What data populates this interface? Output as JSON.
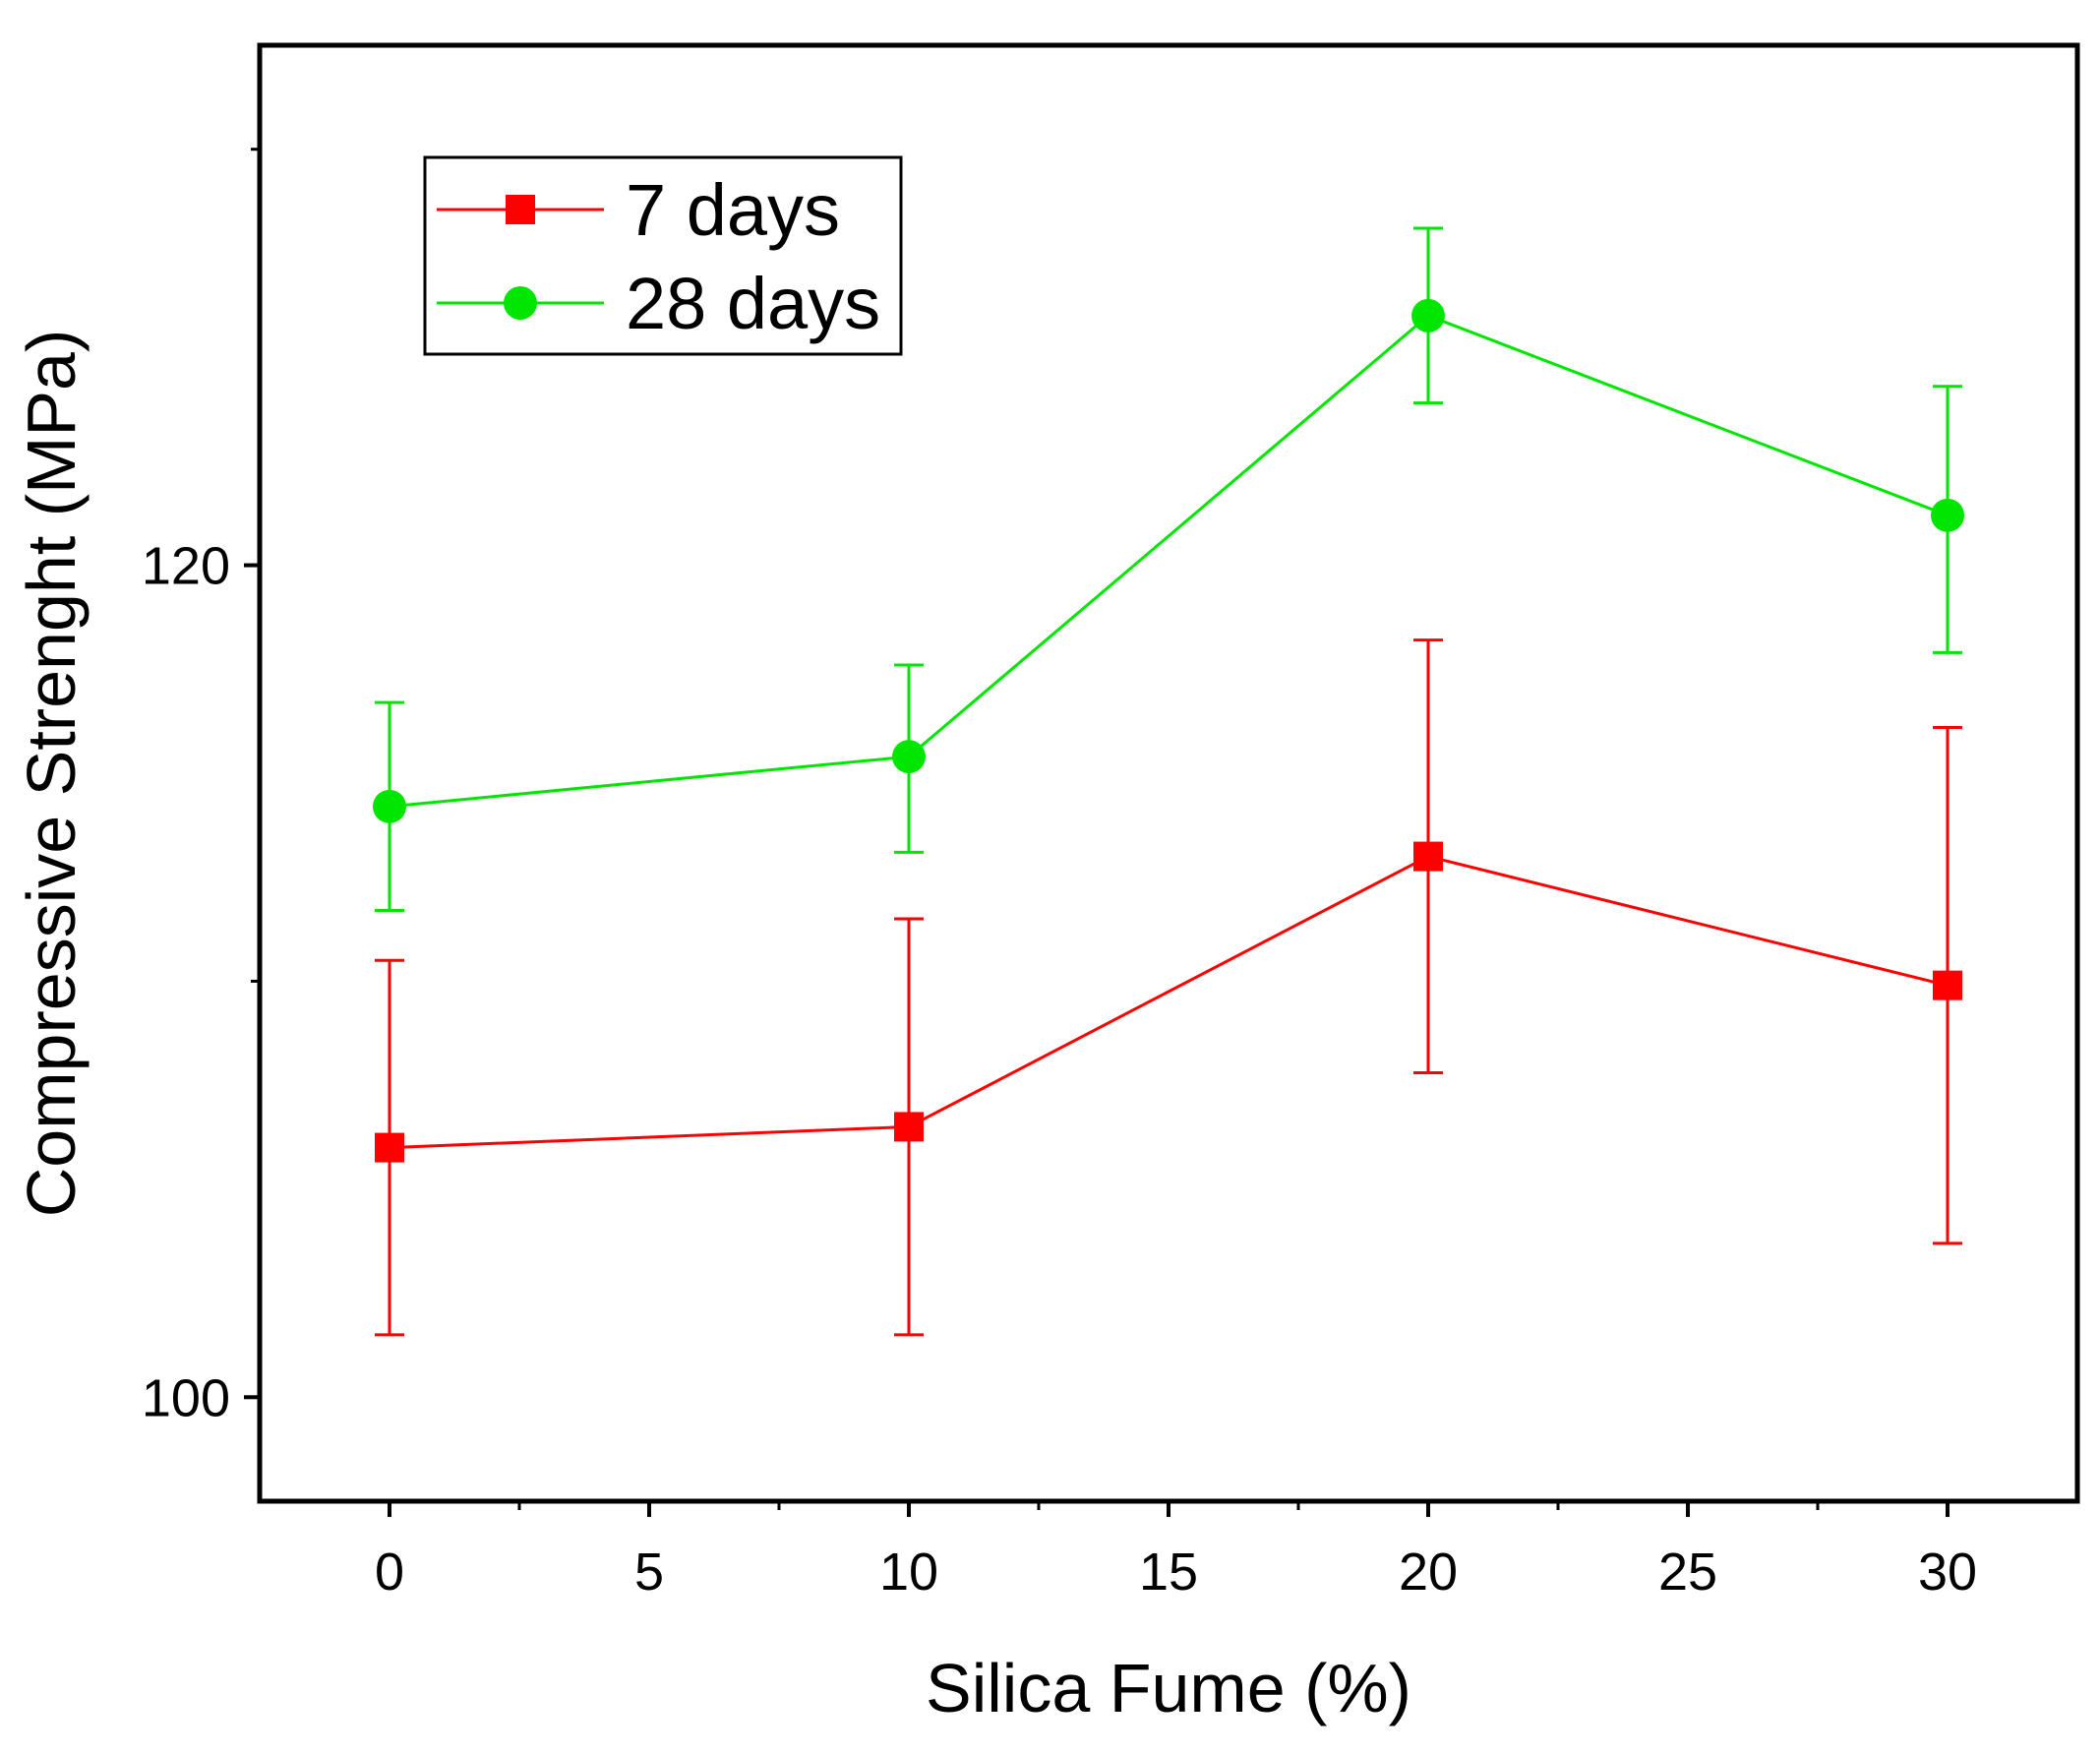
{
  "chart_data": {
    "type": "line",
    "title": "",
    "xlabel": "Silica Fume (%)",
    "ylabel": "Compressive Strenght (MPa)",
    "xlim": [
      -2.5,
      32.5
    ],
    "ylim": [
      97.5,
      132.5
    ],
    "x_ticks": [
      0,
      5,
      10,
      15,
      20,
      25,
      30
    ],
    "x_tick_labels": [
      "0",
      "5",
      "10",
      "15",
      "20",
      "25",
      "30"
    ],
    "y_ticks": [
      100,
      120
    ],
    "y_tick_labels": [
      "100",
      "120"
    ],
    "y_minor_ticks": [
      110,
      130
    ],
    "x_minor_ticks": [
      2.5,
      7.5,
      12.5,
      17.5,
      22.5,
      27.5
    ],
    "legend_position": "top-left",
    "series": [
      {
        "name": "7 days",
        "color": "#ff0000",
        "marker": "square",
        "x": [
          0,
          10,
          20,
          30
        ],
        "y": [
          106.0,
          106.5,
          113.0,
          109.9
        ],
        "err_low": [
          101.5,
          101.5,
          107.8,
          103.7
        ],
        "err_high": [
          110.5,
          111.5,
          118.2,
          116.1
        ]
      },
      {
        "name": "28 days",
        "color": "#00e600",
        "marker": "circle",
        "x": [
          0,
          10,
          20,
          30
        ],
        "y": [
          114.2,
          115.4,
          126.0,
          121.2
        ],
        "err_low": [
          111.7,
          113.1,
          123.9,
          117.9
        ],
        "err_high": [
          116.7,
          117.6,
          128.1,
          124.3
        ]
      }
    ]
  }
}
